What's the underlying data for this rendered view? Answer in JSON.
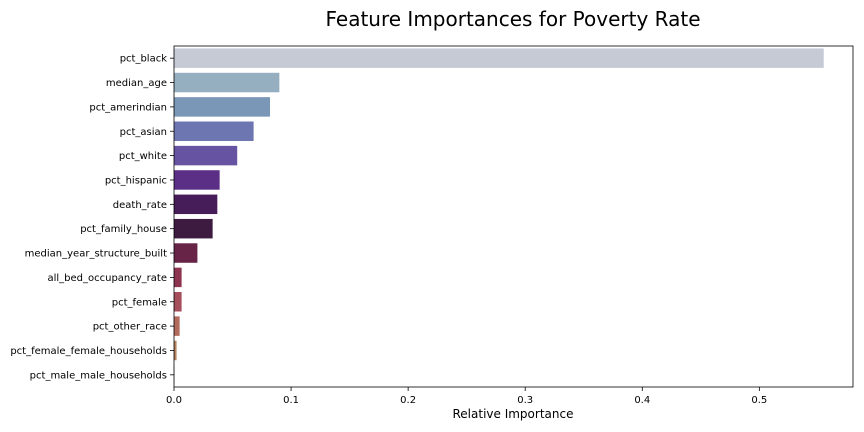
{
  "chart_data": {
    "type": "bar",
    "orientation": "horizontal",
    "title": "Feature Importances for Poverty Rate",
    "xlabel": "Relative Importance",
    "ylabel": "",
    "xlim": [
      0,
      0.58
    ],
    "xticks": [
      "0.0",
      "0.1",
      "0.2",
      "0.3",
      "0.4",
      "0.5"
    ],
    "grid": false,
    "bars": [
      {
        "category": "pct_black",
        "value": 0.555,
        "color": "#c5cad4"
      },
      {
        "category": "median_age",
        "value": 0.09,
        "color": "#95afc1"
      },
      {
        "category": "pct_amerindian",
        "value": 0.082,
        "color": "#7a97b8"
      },
      {
        "category": "pct_asian",
        "value": 0.068,
        "color": "#6d76b0"
      },
      {
        "category": "pct_white",
        "value": 0.054,
        "color": "#6654a3"
      },
      {
        "category": "pct_hispanic",
        "value": 0.039,
        "color": "#5c2f87"
      },
      {
        "category": "death_rate",
        "value": 0.037,
        "color": "#461c59"
      },
      {
        "category": "pct_family_house",
        "value": 0.033,
        "color": "#3d1a40"
      },
      {
        "category": "median_year_structure_built",
        "value": 0.02,
        "color": "#672447"
      },
      {
        "category": "all_bed_occupancy_rate",
        "value": 0.0065,
        "color": "#8d3450"
      },
      {
        "category": "pct_female",
        "value": 0.0065,
        "color": "#a54f5c"
      },
      {
        "category": "pct_other_race",
        "value": 0.0048,
        "color": "#b36b5c"
      },
      {
        "category": "pct_female_female_households",
        "value": 0.0022,
        "color": "#b8835f"
      },
      {
        "category": "pct_male_male_households",
        "value": 0.0004,
        "color": "#bea08a"
      }
    ]
  }
}
